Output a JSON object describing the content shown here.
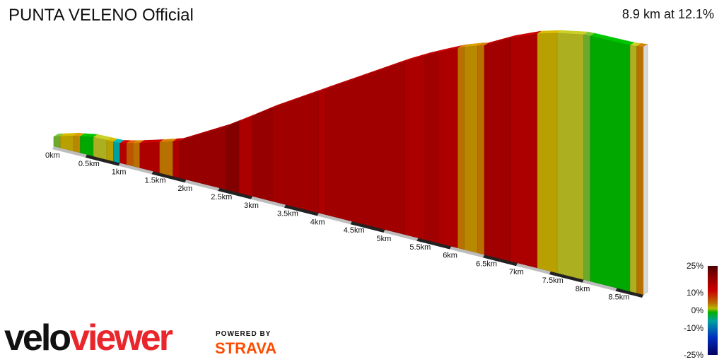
{
  "header": {
    "title": "PUNTA VELENO Official",
    "summary": "8.9 km at 12.1%"
  },
  "branding": {
    "logo_part1": "velo",
    "logo_part2": "viewer",
    "powered_by": "POWERED BY",
    "strava": "STRAVA"
  },
  "colors": {
    "brand_red": "#e8262c",
    "strava_orange": "#fc4c02"
  },
  "chart_data": {
    "type": "area",
    "title": "PUNTA VELENO Official",
    "subtitle": "8.9 km at 12.1%",
    "distance_unit": "km",
    "x_ticks": [
      "0km",
      "0.5km",
      "1km",
      "1.5km",
      "2km",
      "2.5km",
      "3km",
      "3.5km",
      "4km",
      "4.5km",
      "5km",
      "5.5km",
      "6km",
      "6.5km",
      "7km",
      "7.5km",
      "8km",
      "8.5km"
    ],
    "x_tick_values": [
      0,
      0.5,
      1,
      1.5,
      2,
      2.5,
      3,
      3.5,
      4,
      4.5,
      5,
      5.5,
      6,
      6.5,
      7,
      7.5,
      8,
      8.5
    ],
    "total_distance_km": 8.9,
    "profile": {
      "distance_km": [
        0,
        0.3,
        0.6,
        1.0,
        1.2,
        1.5,
        1.9,
        2.4,
        2.9,
        3.4,
        3.9,
        4.5,
        5.0,
        5.5,
        6.0,
        6.3,
        6.6,
        7.0,
        7.4,
        7.9,
        8.4,
        8.7,
        8.9
      ],
      "elevation_rel": [
        0,
        6,
        6,
        -4,
        -2,
        3,
        12,
        40,
        78,
        118,
        152,
        194,
        230,
        262,
        288,
        300,
        305,
        333,
        345,
        350,
        340,
        330,
        328
      ]
    },
    "segments": [
      {
        "from": 0.0,
        "to": 0.1,
        "gradient": 2
      },
      {
        "from": 0.1,
        "to": 0.3,
        "gradient": 6
      },
      {
        "from": 0.3,
        "to": 0.4,
        "gradient": 7
      },
      {
        "from": 0.4,
        "to": 0.6,
        "gradient": 0
      },
      {
        "from": 0.6,
        "to": 0.8,
        "gradient": 4
      },
      {
        "from": 0.8,
        "to": 0.9,
        "gradient": 6
      },
      {
        "from": 0.9,
        "to": 1.0,
        "gradient": -2
      },
      {
        "from": 1.0,
        "to": 1.1,
        "gradient": 14
      },
      {
        "from": 1.1,
        "to": 1.2,
        "gradient": 9
      },
      {
        "from": 1.2,
        "to": 1.3,
        "gradient": 8
      },
      {
        "from": 1.3,
        "to": 1.6,
        "gradient": 15
      },
      {
        "from": 1.6,
        "to": 1.8,
        "gradient": 8
      },
      {
        "from": 1.8,
        "to": 1.9,
        "gradient": 15
      },
      {
        "from": 1.9,
        "to": 2.6,
        "gradient": 17
      },
      {
        "from": 2.6,
        "to": 2.8,
        "gradient": 19
      },
      {
        "from": 2.8,
        "to": 3.0,
        "gradient": 15
      },
      {
        "from": 3.0,
        "to": 3.3,
        "gradient": 17
      },
      {
        "from": 3.3,
        "to": 4.0,
        "gradient": 16
      },
      {
        "from": 4.0,
        "to": 4.1,
        "gradient": 15
      },
      {
        "from": 4.1,
        "to": 5.3,
        "gradient": 16
      },
      {
        "from": 5.3,
        "to": 5.6,
        "gradient": 15
      },
      {
        "from": 5.6,
        "to": 5.8,
        "gradient": 16
      },
      {
        "from": 5.8,
        "to": 6.1,
        "gradient": 15
      },
      {
        "from": 6.1,
        "to": 6.2,
        "gradient": 8
      },
      {
        "from": 6.2,
        "to": 6.4,
        "gradient": 7
      },
      {
        "from": 6.4,
        "to": 6.5,
        "gradient": 8
      },
      {
        "from": 6.5,
        "to": 6.9,
        "gradient": 16
      },
      {
        "from": 6.9,
        "to": 7.3,
        "gradient": 15
      },
      {
        "from": 7.3,
        "to": 7.6,
        "gradient": 6
      },
      {
        "from": 7.6,
        "to": 8.0,
        "gradient": 4
      },
      {
        "from": 8.0,
        "to": 8.1,
        "gradient": 2
      },
      {
        "from": 8.1,
        "to": 8.7,
        "gradient": 0
      },
      {
        "from": 8.7,
        "to": 8.8,
        "gradient": 4
      },
      {
        "from": 8.8,
        "to": 8.9,
        "gradient": 8
      }
    ],
    "legend": {
      "placement": "bottom-right",
      "labels": [
        "25%",
        "10%",
        "0%",
        "-10%",
        "-25%"
      ],
      "values": [
        25,
        10,
        0,
        -10,
        -25
      ],
      "colors": [
        "#4a0000",
        "#8c0000",
        "#cc0000",
        "#b87000",
        "#b8b800",
        "#00b000",
        "#00a0a0",
        "#0030c0",
        "#000060"
      ]
    }
  }
}
